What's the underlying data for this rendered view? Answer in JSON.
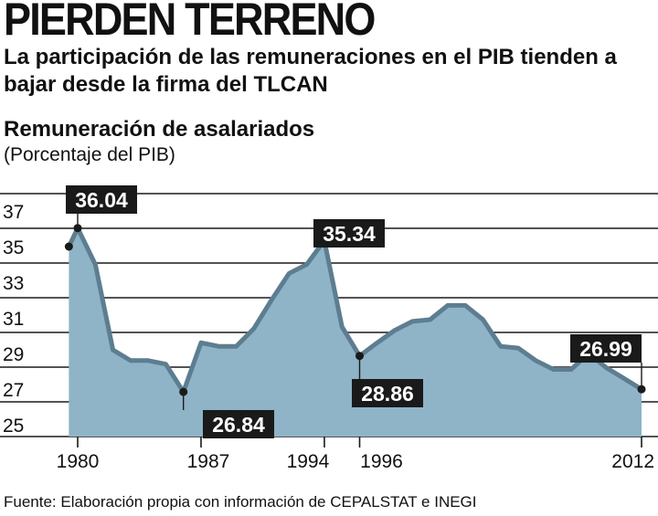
{
  "header": {
    "headline": "PIERDEN TERRENO",
    "subtitle": "La participación de las  remuneraciones en el PIB tienden a bajar desde la firma del TLCAN"
  },
  "chart_title": "Remuneración de asalariados",
  "chart_units": "(Porcentaje del PIB)",
  "source": "Fuente: Elaboración propia con información de CEPALSTAT e INEGI",
  "colors": {
    "fill": "#8fb3c7",
    "line": "#5d7d90",
    "grid": "#1a1a1a",
    "callout_bg": "#1a1a1a",
    "callout_text": "#ffffff"
  },
  "chart_data": {
    "type": "area",
    "title": "Remuneración de asalariados",
    "ylabel": "(Porcentaje del PIB)",
    "xlabel": "",
    "ylim": [
      24.5,
      38
    ],
    "yticks": [
      "25",
      "27",
      "29",
      "31",
      "33",
      "35",
      "37"
    ],
    "xtick_labels": [
      "1980",
      "1987",
      "1994",
      "1996",
      "2012"
    ],
    "grid": true,
    "series": [
      {
        "values": [
          {
            "x": 1979.5,
            "y": 35.0
          },
          {
            "x": 1980,
            "y": 36.04
          },
          {
            "x": 1981,
            "y": 34.0
          },
          {
            "x": 1982,
            "y": 29.2
          },
          {
            "x": 1983,
            "y": 28.6
          },
          {
            "x": 1984,
            "y": 28.6
          },
          {
            "x": 1985,
            "y": 28.4
          },
          {
            "x": 1986,
            "y": 26.84
          },
          {
            "x": 1987,
            "y": 29.6
          },
          {
            "x": 1988,
            "y": 29.4
          },
          {
            "x": 1989,
            "y": 29.4
          },
          {
            "x": 1990,
            "y": 30.4
          },
          {
            "x": 1991,
            "y": 32.0
          },
          {
            "x": 1992,
            "y": 33.5
          },
          {
            "x": 1993,
            "y": 34.0
          },
          {
            "x": 1994,
            "y": 35.34
          },
          {
            "x": 1995,
            "y": 30.5
          },
          {
            "x": 1996,
            "y": 28.86
          },
          {
            "x": 1997,
            "y": 29.6
          },
          {
            "x": 1998,
            "y": 30.3
          },
          {
            "x": 1999,
            "y": 30.8
          },
          {
            "x": 2000,
            "y": 30.9
          },
          {
            "x": 2001,
            "y": 31.7
          },
          {
            "x": 2002,
            "y": 31.7
          },
          {
            "x": 2003,
            "y": 30.9
          },
          {
            "x": 2004,
            "y": 29.4
          },
          {
            "x": 2005,
            "y": 29.3
          },
          {
            "x": 2006,
            "y": 28.6
          },
          {
            "x": 2007,
            "y": 28.1
          },
          {
            "x": 2008,
            "y": 28.1
          },
          {
            "x": 2009,
            "y": 29.0
          },
          {
            "x": 2010,
            "y": 28.2
          },
          {
            "x": 2011,
            "y": 27.6
          },
          {
            "x": 2012,
            "y": 26.99
          }
        ]
      }
    ],
    "annotations": [
      {
        "label": "36.04",
        "x": 1980,
        "y": 36.04
      },
      {
        "label": "26.84",
        "x": 1986,
        "y": 26.84
      },
      {
        "label": "35.34",
        "x": 1994,
        "y": 35.34
      },
      {
        "label": "28.86",
        "x": 1996,
        "y": 28.86
      },
      {
        "label": "26.99",
        "x": 2012,
        "y": 26.99
      }
    ]
  }
}
